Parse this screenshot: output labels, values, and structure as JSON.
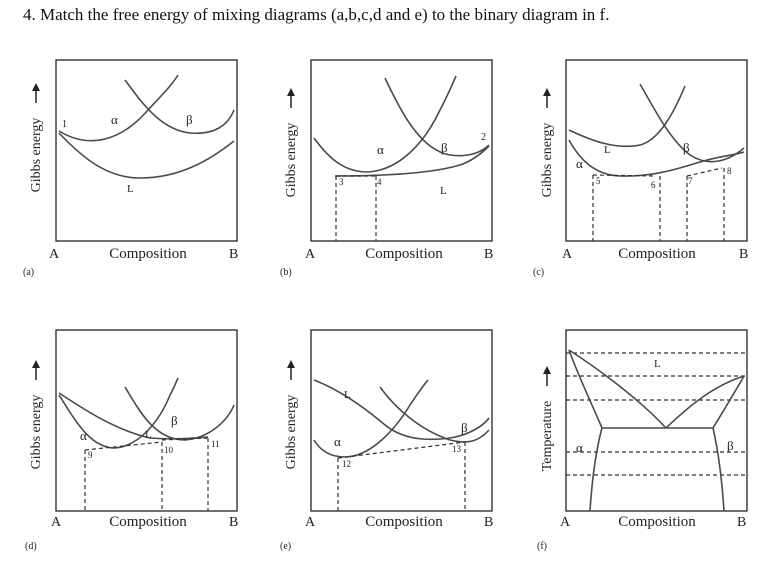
{
  "question": "4. Match the free energy of mixing diagrams (a,b,c,d and e) to the binary diagram in f.",
  "axis": {
    "composition": "Composition",
    "left_end": "A",
    "right_end": "B",
    "gibbs": "Gibbs energy",
    "temperature": "Temperature"
  },
  "phases": {
    "alpha": "α",
    "beta": "β",
    "liquid": "L"
  },
  "panels": [
    {
      "id": "a",
      "caption": "(a)",
      "points": [
        "1"
      ]
    },
    {
      "id": "b",
      "caption": "(b)",
      "points": [
        "2",
        "3",
        "4"
      ]
    },
    {
      "id": "c",
      "caption": "(c)",
      "points": [
        "5",
        "6",
        "7",
        "8"
      ]
    },
    {
      "id": "d",
      "caption": "(d)",
      "points": [
        "9",
        "10",
        "11"
      ]
    },
    {
      "id": "e",
      "caption": "(e)",
      "points": [
        "12",
        "13"
      ]
    },
    {
      "id": "f",
      "caption": "(f)",
      "points": []
    }
  ]
}
